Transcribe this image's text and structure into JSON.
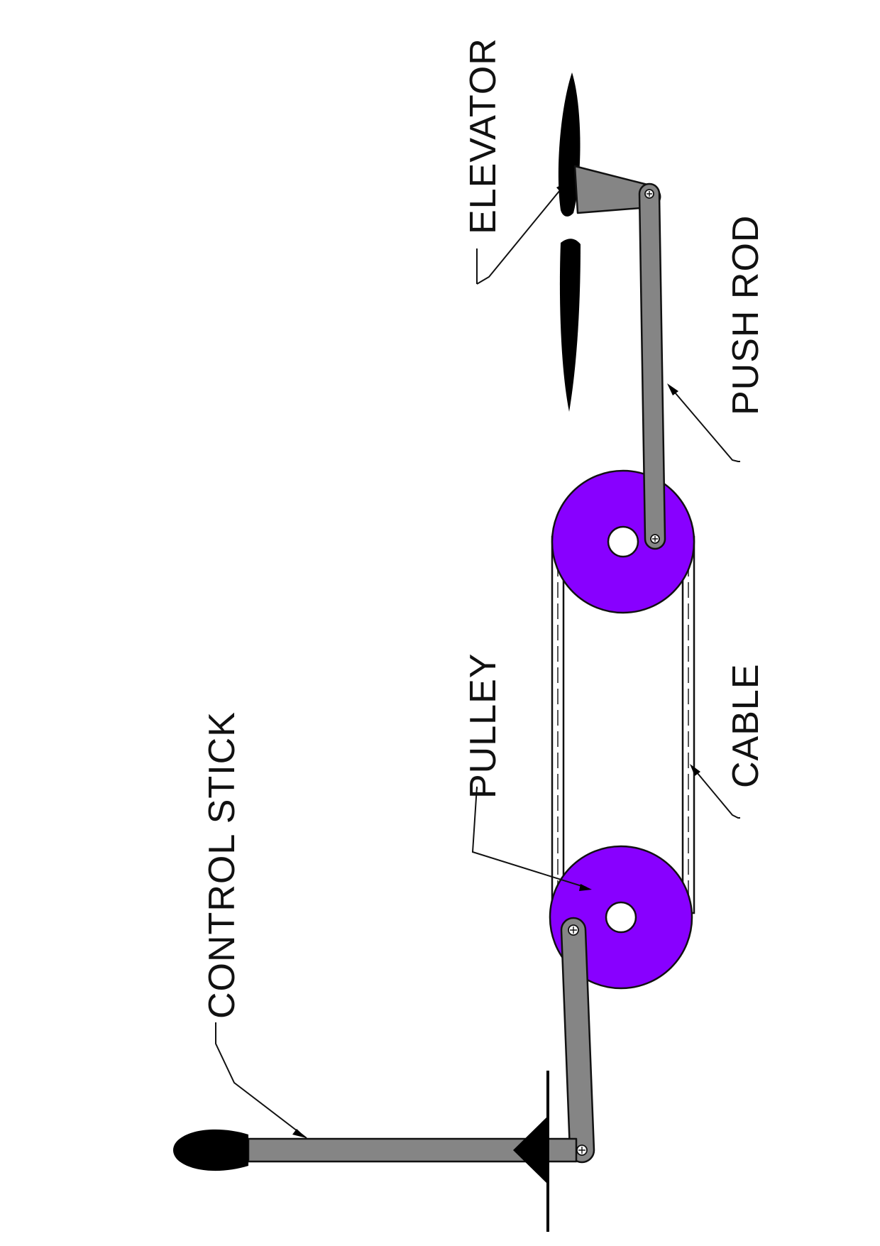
{
  "diagram": {
    "labels": {
      "control_stick": "CONTROL STICK",
      "pulley": "PULLEY",
      "cable": "CABLE",
      "push_rod": "PUSH ROD",
      "elevator": "ELEVATOR"
    },
    "colors": {
      "pulley": "#8800ff",
      "rod": "#858585",
      "outline": "#111111",
      "grip": "#000000",
      "elevator": "#000000",
      "background": "#ffffff"
    },
    "icons": [
      "pivot-screw-icon",
      "arrowhead-icon"
    ]
  }
}
